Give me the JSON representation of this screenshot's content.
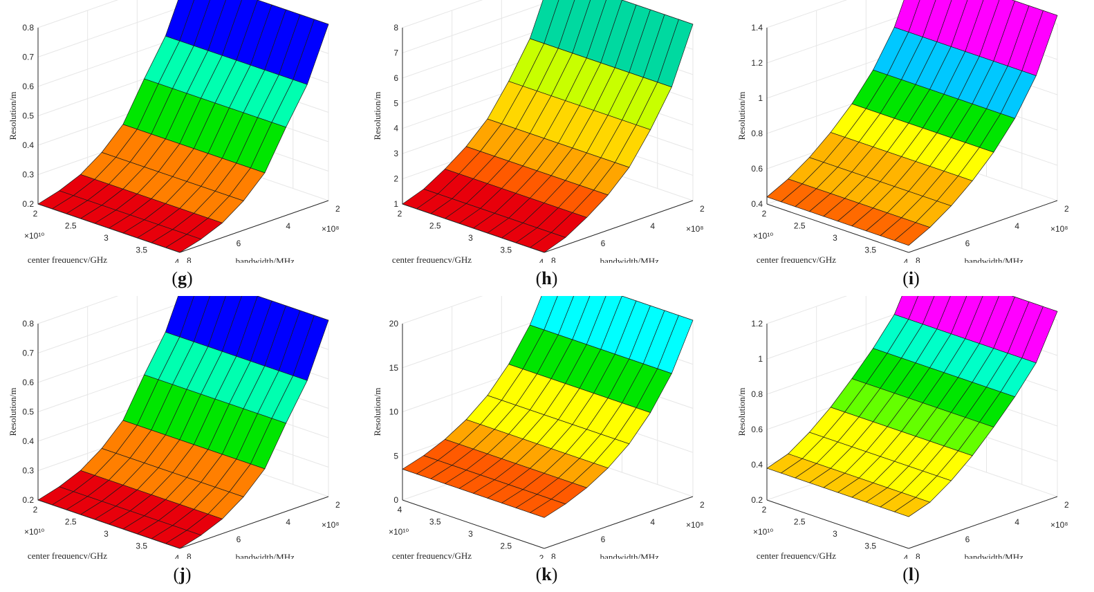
{
  "chart_data": [
    {
      "id": "g",
      "type": "surface",
      "caption_letter": "g",
      "zlabel": "Resolution/m",
      "xlabel": "center frequency/GHz",
      "ylabel": "bandwidth/MHz",
      "freq_ticks": [
        "2",
        "2.5",
        "3",
        "3.5",
        "4"
      ],
      "freq_exponent": "×10¹⁰",
      "bw_ticks": [
        "8",
        "6",
        "4",
        "2"
      ],
      "bw_exponent": "×10⁸",
      "z_ticks": [
        "0.2",
        "0.3",
        "0.4",
        "0.5",
        "0.6",
        "0.7",
        "0.8"
      ],
      "zlim": [
        0.2,
        0.8
      ],
      "freq_range_GHz": [
        20,
        40
      ],
      "bandwidth_range_MHz": [
        200,
        800
      ],
      "bandwidth_grid_MHz": [
        800,
        700,
        600,
        500,
        400,
        300,
        250,
        200
      ],
      "resolution_m_vs_bandwidth": [
        0.2,
        0.22,
        0.25,
        0.3,
        0.37,
        0.5,
        0.62,
        0.8
      ],
      "palette": [
        "#e8000b",
        "#ff7f00",
        "#ffff00",
        "#00e600",
        "#00ffb0",
        "#00ffff",
        "#0000ff",
        "#ff1493"
      ]
    },
    {
      "id": "h",
      "type": "surface",
      "caption_letter": "h",
      "zlabel": "Resolution/m",
      "xlabel": "center frequency/GHz",
      "ylabel": "bandwidth/MHz",
      "freq_ticks": [
        "2",
        "2.5",
        "3",
        "3.5",
        "4"
      ],
      "freq_exponent": "",
      "bw_ticks": [
        "8",
        "6",
        "4",
        "2"
      ],
      "bw_exponent": "×10⁸",
      "z_ticks": [
        "1",
        "2",
        "3",
        "4",
        "5",
        "6",
        "7",
        "8"
      ],
      "zlim": [
        1,
        8
      ],
      "freq_range_GHz": [
        20,
        40
      ],
      "bandwidth_range_MHz": [
        200,
        800
      ],
      "bandwidth_grid_MHz": [
        800,
        700,
        600,
        500,
        400,
        300,
        250,
        200
      ],
      "resolution_m_vs_bandwidth": [
        1,
        1.3,
        1.8,
        2.4,
        3.2,
        4.4,
        5.8,
        8
      ],
      "palette": [
        "#e8000b",
        "#ff5a00",
        "#ffa500",
        "#ffd700",
        "#c8ff00",
        "#00e600",
        "#00d9a0",
        "#1e64ff"
      ]
    },
    {
      "id": "i",
      "type": "surface",
      "caption_letter": "i",
      "zlabel": "Resolution/m",
      "xlabel": "center frequency/GHz",
      "ylabel": "bandwidth/MHz",
      "freq_ticks": [
        "2",
        "2.5",
        "3",
        "3.5",
        "4"
      ],
      "freq_exponent": "×10¹⁰",
      "bw_ticks": [
        "8",
        "6",
        "4",
        "2"
      ],
      "bw_exponent": "×10⁸",
      "z_ticks": [
        "0.4",
        "0.6",
        "0.8",
        "1",
        "1.2",
        "1.4"
      ],
      "zlim": [
        0.4,
        1.4
      ],
      "freq_range_GHz": [
        20,
        40
      ],
      "bandwidth_range_MHz": [
        200,
        800
      ],
      "bandwidth_grid_MHz": [
        800,
        700,
        600,
        500,
        400,
        300,
        250,
        200
      ],
      "resolution_m_vs_bandwidth": [
        0.44,
        0.5,
        0.58,
        0.68,
        0.8,
        0.95,
        1.15,
        1.45
      ],
      "palette": [
        "#ff6a00",
        "#ffb400",
        "#ffff00",
        "#00e600",
        "#00ffa0",
        "#00c8ff",
        "#0050ff",
        "#ff00ff"
      ]
    },
    {
      "id": "j",
      "type": "surface",
      "caption_letter": "j",
      "zlabel": "Resolution/m",
      "xlabel": "center frequency/GHz",
      "ylabel": "bandwidth/MHz",
      "freq_ticks": [
        "2",
        "2.5",
        "3",
        "3.5",
        "4"
      ],
      "freq_exponent": "×10¹⁰",
      "bw_ticks": [
        "8",
        "6",
        "4",
        "2"
      ],
      "bw_exponent": "×10⁸",
      "z_ticks": [
        "0.2",
        "0.3",
        "0.4",
        "0.5",
        "0.6",
        "0.7",
        "0.8"
      ],
      "zlim": [
        0.2,
        0.8
      ],
      "freq_range_GHz": [
        20,
        40
      ],
      "bandwidth_range_MHz": [
        200,
        800
      ],
      "bandwidth_grid_MHz": [
        800,
        700,
        600,
        500,
        400,
        300,
        250,
        200
      ],
      "resolution_m_vs_bandwidth": [
        0.2,
        0.22,
        0.25,
        0.3,
        0.37,
        0.5,
        0.62,
        0.8
      ],
      "palette": [
        "#e8000b",
        "#ff7f00",
        "#ffff00",
        "#00e600",
        "#00ffb0",
        "#00ffff",
        "#0000ff",
        "#ff1493"
      ]
    },
    {
      "id": "k",
      "type": "surface",
      "caption_letter": "k",
      "zlabel": "Resolution/m",
      "xlabel": "center frequency/GHz",
      "ylabel": "bandwidth/MHz",
      "freq_ticks": [
        "4",
        "3.5",
        "3",
        "2.5",
        "2"
      ],
      "freq_exponent": "×10¹⁰",
      "bw_ticks": [
        "8",
        "6",
        "4",
        "2"
      ],
      "bw_exponent": "×10⁸",
      "z_ticks": [
        "0",
        "5",
        "10",
        "15",
        "20"
      ],
      "zlim": [
        0,
        20
      ],
      "freq_range_GHz": [
        20,
        40
      ],
      "bandwidth_range_MHz": [
        200,
        800
      ],
      "bandwidth_grid_MHz": [
        800,
        700,
        600,
        500,
        400,
        300,
        250,
        200
      ],
      "resolution_m_vs_bandwidth": [
        3.5,
        4.2,
        5.2,
        6.6,
        8.5,
        11.2,
        14.8,
        20
      ],
      "palette": [
        "#e8000b",
        "#ff5a00",
        "#ffa500",
        "#ffff00",
        "#b4ff00",
        "#00e600",
        "#00ffff",
        "#0000ff"
      ]
    },
    {
      "id": "l",
      "type": "surface",
      "caption_letter": "l",
      "zlabel": "Resolution/m",
      "xlabel": "center frequency/GHz",
      "ylabel": "bandwidth/MHz",
      "freq_ticks": [
        "2",
        "2.5",
        "3",
        "3.5",
        "4"
      ],
      "freq_exponent": "×10¹⁰",
      "bw_ticks": [
        "8",
        "6",
        "4",
        "2"
      ],
      "bw_exponent": "×10⁸",
      "z_ticks": [
        "0.2",
        "0.4",
        "0.6",
        "0.8",
        "1",
        "1.2"
      ],
      "zlim": [
        0.2,
        1.2
      ],
      "freq_range_GHz": [
        20,
        40
      ],
      "bandwidth_range_MHz": [
        200,
        800
      ],
      "bandwidth_grid_MHz": [
        800,
        700,
        600,
        500,
        400,
        300,
        250,
        200
      ],
      "resolution_m_vs_bandwidth": [
        0.38,
        0.42,
        0.5,
        0.6,
        0.72,
        0.85,
        1.0,
        1.25
      ],
      "palette": [
        "#ff8c00",
        "#ffc800",
        "#ffff00",
        "#64ff00",
        "#00e600",
        "#00ffc8",
        "#0064ff",
        "#ff00ff"
      ]
    }
  ]
}
